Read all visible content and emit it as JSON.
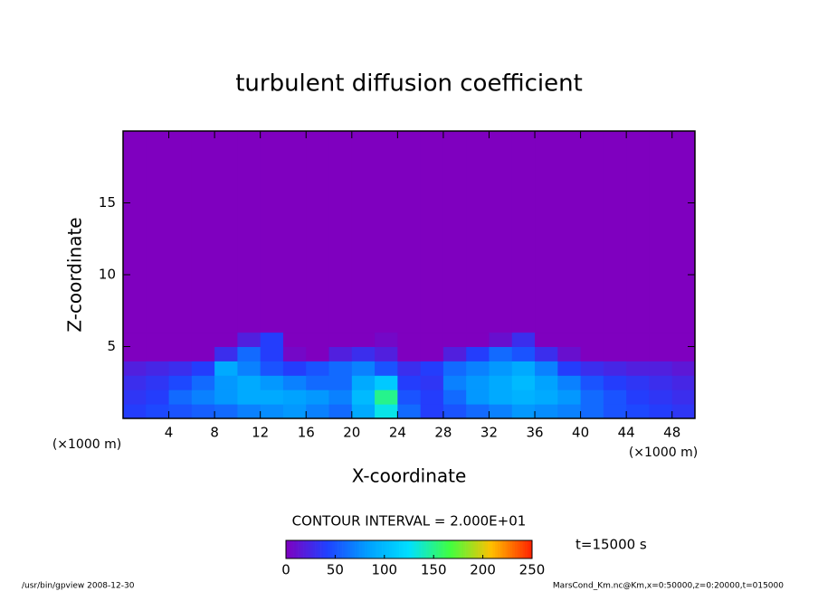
{
  "chart_data": {
    "type": "contour",
    "title": "turbulent diffusion coefficient",
    "x_label": "X-coordinate",
    "y_label": "Z-coordinate",
    "x_unit": "(×1000 m)",
    "y_unit": "(×1000 m)",
    "xlim": [
      0,
      50
    ],
    "ylim": [
      0,
      20
    ],
    "xticks": [
      4,
      8,
      12,
      16,
      20,
      24,
      28,
      32,
      36,
      40,
      44,
      48
    ],
    "yticks": [
      5,
      10,
      15
    ],
    "x_bins": [
      0,
      2,
      4,
      6,
      8,
      10,
      12,
      14,
      16,
      18,
      20,
      22,
      24,
      26,
      28,
      30,
      32,
      34,
      36,
      38,
      40,
      42,
      44,
      46,
      48,
      50
    ],
    "y_bins": [
      0,
      1,
      2,
      3,
      4,
      5,
      6,
      20
    ],
    "z": [
      [
        40,
        45,
        50,
        55,
        60,
        70,
        75,
        80,
        70,
        60,
        90,
        130,
        60,
        40,
        50,
        60,
        70,
        80,
        75,
        70,
        60,
        50,
        45,
        40,
        35
      ],
      [
        35,
        40,
        60,
        70,
        80,
        90,
        90,
        85,
        80,
        70,
        100,
        150,
        50,
        40,
        60,
        80,
        90,
        95,
        90,
        80,
        60,
        50,
        40,
        35,
        30
      ],
      [
        30,
        35,
        45,
        60,
        80,
        90,
        80,
        70,
        60,
        60,
        90,
        110,
        40,
        35,
        70,
        80,
        90,
        100,
        85,
        70,
        50,
        40,
        35,
        30,
        25
      ],
      [
        20,
        25,
        30,
        40,
        90,
        70,
        50,
        40,
        50,
        60,
        70,
        50,
        30,
        40,
        60,
        70,
        80,
        90,
        70,
        40,
        30,
        25,
        20,
        20,
        15
      ],
      [
        0,
        0,
        0,
        0,
        30,
        60,
        40,
        5,
        0,
        20,
        30,
        20,
        0,
        0,
        20,
        40,
        60,
        50,
        30,
        10,
        0,
        0,
        0,
        0,
        0
      ],
      [
        0,
        0,
        0,
        0,
        0,
        20,
        40,
        0,
        0,
        0,
        0,
        5,
        0,
        0,
        0,
        0,
        10,
        30,
        0,
        0,
        0,
        0,
        0,
        0,
        0
      ],
      [
        0,
        0,
        0,
        0,
        0,
        0,
        0,
        0,
        0,
        0,
        0,
        0,
        0,
        0,
        0,
        0,
        0,
        0,
        0,
        0,
        0,
        0,
        0,
        0,
        0
      ]
    ],
    "contour_interval": "CONTOUR INTERVAL = 2.000E+01",
    "clim": [
      0,
      250
    ],
    "cticks": [
      0,
      50,
      100,
      150,
      200,
      250
    ],
    "colormap": [
      "#7f00bf",
      "#2040ff",
      "#00a0ff",
      "#00e0ff",
      "#40ff40",
      "#ffc000",
      "#ff2000"
    ],
    "time_label": "t=15000 s",
    "footer_left": "/usr/bin/gpview  2008-12-30",
    "footer_right": "MarsCond_Km.nc@Km,x=0:50000,z=0:20000,t=015000"
  }
}
